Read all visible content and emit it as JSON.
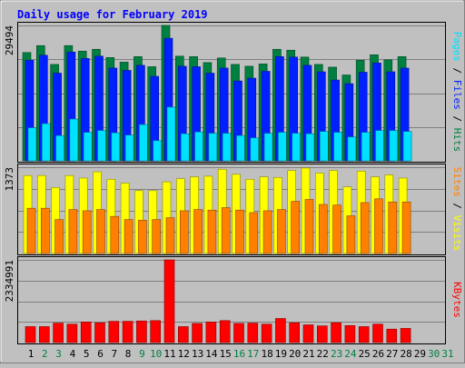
{
  "chart_data": {
    "type": "bar",
    "title": "Daily usage for February 2019",
    "days": [
      "1",
      "2",
      "3",
      "4",
      "5",
      "6",
      "7",
      "8",
      "9",
      "10",
      "11",
      "12",
      "13",
      "14",
      "15",
      "16",
      "17",
      "18",
      "19",
      "20",
      "21",
      "22",
      "23",
      "24",
      "25",
      "26",
      "27",
      "28",
      "29",
      "30",
      "31"
    ],
    "weekend_days": [
      "2",
      "3",
      "9",
      "10",
      "16",
      "17",
      "23",
      "24",
      "30",
      "31"
    ],
    "panels": [
      {
        "id": "hits-files-pages",
        "max_label": "29494",
        "ymax": 29494,
        "side_label": [
          "Pages",
          "Files",
          "Hits"
        ],
        "series": [
          {
            "name": "Hits",
            "color": "#008040",
            "values": [
              23600,
              25100,
              21000,
              25100,
              23900,
              24300,
              22500,
              21500,
              22700,
              20500,
              29500,
              22800,
              22700,
              21400,
              22400,
              21000,
              20600,
              21100,
              24300,
              24100,
              22600,
              21000,
              20400,
              18700,
              21900,
              23100,
              22000,
              22700,
              null,
              null,
              null
            ]
          },
          {
            "name": "Files",
            "color": "#0020ff",
            "values": [
              21900,
              23000,
              19100,
              23700,
              22300,
              22800,
              20200,
              19700,
              20800,
              18400,
              26700,
              20600,
              20500,
              19100,
              20200,
              17400,
              18000,
              19500,
              22700,
              22600,
              20800,
              19400,
              17600,
              16800,
              19300,
              21300,
              19400,
              20200,
              null,
              null,
              null
            ]
          },
          {
            "name": "Pages",
            "color": "#00e0ff",
            "values": [
              7200,
              8100,
              5500,
              9100,
              6200,
              6600,
              6100,
              5600,
              7900,
              4400,
              11700,
              5900,
              6300,
              6000,
              6000,
              5500,
              5000,
              6000,
              6200,
              6000,
              5900,
              6400,
              6200,
              5200,
              6200,
              6600,
              6600,
              6400,
              null,
              null,
              null
            ]
          }
        ]
      },
      {
        "id": "visits-sites",
        "max_label": "1373",
        "ymax": 1373,
        "side_label": [
          "Sites",
          "Visits"
        ],
        "series": [
          {
            "name": "Visits",
            "color": "#ffff00",
            "values": [
              1240,
              1240,
              1050,
              1240,
              1200,
              1300,
              1180,
              1120,
              1000,
              1000,
              1140,
              1190,
              1220,
              1230,
              1340,
              1260,
              1180,
              1220,
              1210,
              1320,
              1360,
              1280,
              1320,
              1060,
              1310,
              1220,
              1250,
              1200,
              null,
              null,
              null
            ]
          },
          {
            "name": "Sites",
            "color": "#ff8000",
            "values": [
              720,
              720,
              540,
              700,
              680,
              700,
              590,
              540,
              530,
              540,
              570,
              680,
              700,
              690,
              730,
              690,
              650,
              680,
              700,
              830,
              860,
              780,
              770,
              600,
              810,
              870,
              820,
              820,
              null,
              null,
              null
            ]
          }
        ]
      },
      {
        "id": "kbytes",
        "max_label": "2334991",
        "ymax": 2334991,
        "side_label": [
          "KBytes"
        ],
        "series": [
          {
            "name": "KBytes",
            "color": "#ff0000",
            "values": [
              450000,
              450000,
              550000,
              520000,
              580000,
              560000,
              600000,
              600000,
              610000,
              620000,
              2334991,
              450000,
              540000,
              580000,
              620000,
              540000,
              550000,
              520000,
              680000,
              560000,
              500000,
              470000,
              560000,
              480000,
              450000,
              520000,
              380000,
              400000,
              null,
              null,
              null
            ]
          }
        ]
      }
    ],
    "grid": true
  }
}
